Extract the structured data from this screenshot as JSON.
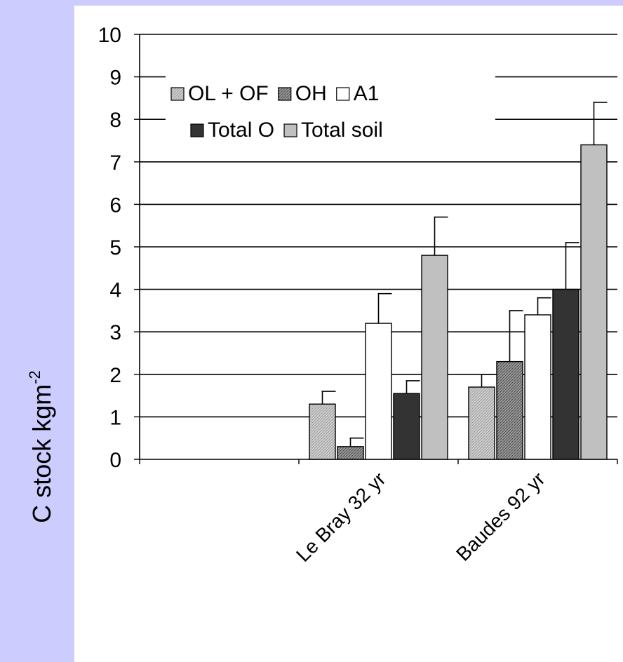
{
  "chart_data": {
    "type": "bar",
    "title": "",
    "xlabel": "",
    "ylabel": "C stock kgm",
    "ylabel_superscript": "-2",
    "ylim": [
      0,
      10
    ],
    "yticks": [
      "0",
      "1",
      "2",
      "3",
      "4",
      "5",
      "6",
      "7",
      "8",
      "9",
      "10"
    ],
    "grid": "horizontal",
    "legend_position": "top",
    "categories": [
      "Le Bray 32 yr",
      "Baudes 92 yr"
    ],
    "series": [
      {
        "name": "OL + OF",
        "values": [
          1.3,
          1.7
        ],
        "errors": [
          0.3,
          0.3
        ],
        "color": "#c8c8c8",
        "pattern": "fine-hatch"
      },
      {
        "name": "OH",
        "values": [
          0.3,
          2.3
        ],
        "errors": [
          0.2,
          1.2
        ],
        "color": "#8c8c8c",
        "pattern": "dark-hatch"
      },
      {
        "name": "A1",
        "values": [
          3.2,
          3.4
        ],
        "errors": [
          0.7,
          0.4
        ],
        "color": "#ffffff",
        "pattern": "none"
      },
      {
        "name": "Total O",
        "values": [
          1.55,
          4.0
        ],
        "errors": [
          0.3,
          1.1
        ],
        "color": "#333333",
        "pattern": "none"
      },
      {
        "name": "Total soil",
        "values": [
          4.8,
          7.4
        ],
        "errors": [
          0.9,
          1.0
        ],
        "color": "#c0c0c0",
        "pattern": "none"
      }
    ]
  }
}
